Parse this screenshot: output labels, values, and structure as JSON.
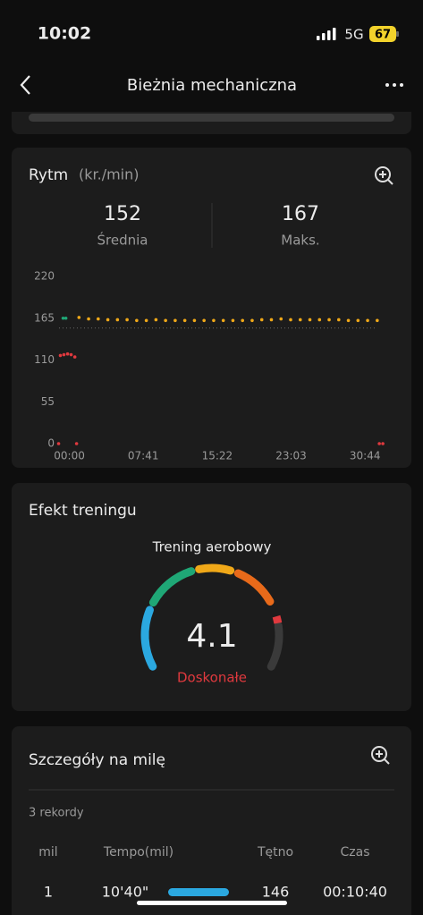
{
  "status_bar": {
    "time": "10:02",
    "network": "5G",
    "battery": "67"
  },
  "header": {
    "title": "Bieżnia mechaniczna"
  },
  "cadence": {
    "title": "Rytm",
    "unit": "(kr./min)",
    "average": 152,
    "average_label": "Średnia",
    "max": 167,
    "max_label": "Maks."
  },
  "chart_data": {
    "type": "scatter",
    "xlim": [
      -70,
      1960
    ],
    "xticks": [
      {
        "value": 0,
        "label": "00:00"
      },
      {
        "value": 461,
        "label": "07:41"
      },
      {
        "value": 922,
        "label": "15:22"
      },
      {
        "value": 1383,
        "label": "23:03"
      },
      {
        "value": 1844,
        "label": "30:44"
      }
    ],
    "ylim": [
      0,
      220
    ],
    "yticks": [
      0,
      55,
      110,
      165,
      220
    ],
    "series": [
      {
        "color": "#e0393e",
        "x": [
          -67,
          45,
          1933,
          1955
        ],
        "values": [
          0,
          0,
          0,
          0
        ]
      },
      {
        "color": "#e0393e",
        "x": [
          -56,
          -34,
          -11,
          11,
          34
        ],
        "values": [
          116,
          117,
          118,
          117,
          114
        ]
      },
      {
        "color": "#1fa776",
        "x": [
          -39,
          -22
        ],
        "values": [
          165,
          165
        ]
      },
      {
        "color": "#f0a818",
        "x": [
          60,
          120,
          180,
          240,
          300,
          360,
          420,
          480,
          540,
          600,
          660,
          720,
          780,
          840,
          900,
          960,
          1020,
          1080,
          1140,
          1200,
          1260,
          1320,
          1380,
          1440,
          1500,
          1560,
          1620,
          1680,
          1740,
          1800,
          1860,
          1920
        ],
        "values": [
          166,
          164,
          164,
          163,
          163,
          163,
          162,
          162,
          163,
          162,
          162,
          162,
          162,
          162,
          162,
          162,
          162,
          162,
          162,
          163,
          163,
          164,
          163,
          163,
          163,
          163,
          163,
          163,
          162,
          162,
          162,
          162
        ]
      }
    ]
  },
  "training_effect": {
    "title": "Efekt treningu",
    "type": "Trening aerobowy",
    "value": 4.1,
    "rating": "Doskonałe"
  },
  "mile_details": {
    "title": "Szczegóły na milę",
    "count": "3 rekordy",
    "columns": [
      "mil",
      "Tempo(mil)",
      "Tętno",
      "Czas"
    ],
    "rows": [
      [
        "1",
        "10'40\"",
        "146",
        "00:10:40"
      ]
    ]
  }
}
